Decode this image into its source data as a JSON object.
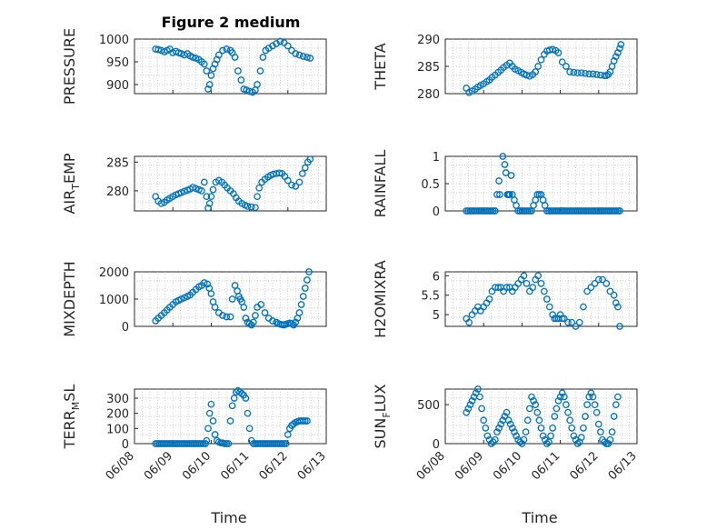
{
  "figure": {
    "title": "Figure 2 medium",
    "marker_color": "#0072bd",
    "xlabel": "Time",
    "xtick_labels": [
      "06/08",
      "06/09",
      "06/10",
      "06/11",
      "06/12",
      "06/13"
    ]
  },
  "chart_data": [
    {
      "type": "scatter",
      "ylabel": "PRESSURE",
      "ylim": [
        880,
        1000
      ],
      "yticks": [
        900,
        950,
        1000
      ],
      "grid": true,
      "x": [
        0.55,
        0.62,
        0.7,
        0.78,
        0.85,
        0.92,
        1.0,
        1.08,
        1.15,
        1.22,
        1.3,
        1.38,
        1.45,
        1.52,
        1.6,
        1.68,
        1.75,
        1.82,
        1.88,
        1.92,
        1.96,
        2.0,
        2.05,
        2.1,
        2.15,
        2.2,
        2.3,
        2.4,
        2.5,
        2.55,
        2.62,
        2.7,
        2.78,
        2.85,
        2.92,
        3.0,
        3.08,
        3.15,
        3.2,
        3.28,
        3.35,
        3.42,
        3.5,
        3.6,
        3.7,
        3.8,
        3.9,
        4.0,
        4.1,
        4.2,
        4.3,
        4.4,
        4.5,
        4.58
      ],
      "y": [
        978,
        977,
        975,
        972,
        975,
        978,
        970,
        973,
        970,
        968,
        965,
        968,
        963,
        960,
        958,
        955,
        950,
        945,
        930,
        890,
        900,
        920,
        935,
        945,
        955,
        965,
        975,
        978,
        975,
        970,
        960,
        930,
        910,
        890,
        888,
        885,
        883,
        888,
        900,
        930,
        960,
        975,
        980,
        985,
        990,
        995,
        992,
        985,
        975,
        968,
        965,
        962,
        960,
        958
      ]
    },
    {
      "type": "scatter",
      "ylabel": "THETA",
      "ylim": [
        280,
        290
      ],
      "yticks": [
        280,
        285,
        290
      ],
      "grid": true,
      "x": [
        0.55,
        0.62,
        0.7,
        0.78,
        0.85,
        0.92,
        1.0,
        1.08,
        1.15,
        1.22,
        1.3,
        1.38,
        1.45,
        1.52,
        1.6,
        1.68,
        1.75,
        1.82,
        1.9,
        1.98,
        2.05,
        2.12,
        2.2,
        2.28,
        2.35,
        2.42,
        2.5,
        2.58,
        2.65,
        2.72,
        2.8,
        2.88,
        2.95,
        3.05,
        3.15,
        3.25,
        3.35,
        3.45,
        3.55,
        3.65,
        3.75,
        3.85,
        3.95,
        4.05,
        4.15,
        4.2,
        4.25,
        4.3,
        4.35,
        4.4,
        4.45,
        4.5,
        4.55,
        4.58
      ],
      "y": [
        281,
        280.2,
        280.5,
        280.8,
        281.2,
        281.5,
        281.8,
        282.2,
        282.5,
        283,
        283.4,
        283.9,
        284.3,
        284.8,
        285.2,
        285.6,
        285,
        284.5,
        284.2,
        283.9,
        283.6,
        283.4,
        283.2,
        283.5,
        284,
        285,
        286.2,
        287.2,
        287.8,
        288,
        288.1,
        287.9,
        287.5,
        285.8,
        285,
        284,
        283.9,
        283.8,
        283.8,
        283.7,
        283.6,
        283.6,
        283.5,
        283.4,
        283.3,
        283.3,
        283.5,
        284,
        285,
        286,
        286.8,
        287.5,
        288.3,
        289
      ]
    },
    {
      "type": "scatter",
      "ylabel": "AIR",
      "ylabel_sub": "T",
      "ylabel_suffix": "EMP",
      "ylim": [
        276.5,
        286
      ],
      "yticks": [
        280,
        285
      ],
      "grid": true,
      "x": [
        0.55,
        0.62,
        0.7,
        0.78,
        0.85,
        0.92,
        1.0,
        1.08,
        1.15,
        1.22,
        1.3,
        1.38,
        1.45,
        1.52,
        1.6,
        1.68,
        1.75,
        1.82,
        1.88,
        1.92,
        1.96,
        2.0,
        2.05,
        2.12,
        2.2,
        2.28,
        2.35,
        2.42,
        2.5,
        2.58,
        2.65,
        2.72,
        2.8,
        2.88,
        2.95,
        3.05,
        3.15,
        3.2,
        3.25,
        3.32,
        3.4,
        3.48,
        3.55,
        3.62,
        3.7,
        3.78,
        3.85,
        3.92,
        4.0,
        4.1,
        4.2,
        4.3,
        4.38,
        4.45,
        4.52,
        4.58
      ],
      "y": [
        279,
        278.2,
        277.8,
        278,
        278.4,
        278.7,
        279,
        279.3,
        279.5,
        279.7,
        279.9,
        280.1,
        280.3,
        280.6,
        280.4,
        280.2,
        280,
        281.5,
        279,
        277,
        277.8,
        279,
        280.2,
        281.5,
        281.8,
        281.5,
        281,
        280.5,
        280,
        279.5,
        278.8,
        278.2,
        277.8,
        277.5,
        277.3,
        277.2,
        277.1,
        279,
        280.5,
        281.5,
        282,
        282.4,
        282.7,
        282.9,
        283,
        283.1,
        283,
        282.5,
        281.8,
        281,
        280.8,
        281.5,
        283,
        284,
        285,
        285.5
      ]
    },
    {
      "type": "scatter",
      "ylabel": "RAINFALL",
      "ylim": [
        0,
        1
      ],
      "yticks": [
        0,
        0.5,
        1
      ],
      "grid": true,
      "x": [
        0.55,
        0.6,
        0.65,
        0.7,
        0.75,
        0.8,
        0.85,
        0.9,
        0.95,
        1.0,
        1.05,
        1.1,
        1.15,
        1.2,
        1.25,
        1.3,
        1.35,
        1.4,
        1.42,
        1.5,
        1.55,
        1.58,
        1.62,
        1.65,
        1.68,
        1.72,
        1.75,
        1.8,
        1.85,
        1.9,
        1.95,
        2.0,
        2.05,
        2.1,
        2.15,
        2.2,
        2.25,
        2.3,
        2.35,
        2.4,
        2.45,
        2.5,
        2.55,
        2.6,
        2.65,
        2.7,
        2.75,
        2.8,
        2.85,
        2.9,
        2.95,
        3.0,
        3.05,
        3.1,
        3.15,
        3.2,
        3.25,
        3.3,
        3.35,
        3.4,
        3.45,
        3.5,
        3.55,
        3.6,
        3.65,
        3.7,
        3.75,
        3.8,
        3.85,
        3.9,
        3.95,
        4.0,
        4.05,
        4.1,
        4.15,
        4.2,
        4.25,
        4.3,
        4.35,
        4.4,
        4.45,
        4.5,
        4.55
      ],
      "y": [
        0,
        0,
        0,
        0,
        0,
        0,
        0,
        0,
        0,
        0,
        0,
        0,
        0,
        0,
        0,
        0,
        0.3,
        0.55,
        0.3,
        1.0,
        0.85,
        0.7,
        0.3,
        0.3,
        0.3,
        0.65,
        0.3,
        0.2,
        0.1,
        0,
        0,
        0,
        0,
        0,
        0,
        0,
        0,
        0.1,
        0.2,
        0.3,
        0.3,
        0.3,
        0.2,
        0.1,
        0,
        0,
        0,
        0,
        0,
        0,
        0,
        0,
        0,
        0,
        0,
        0,
        0,
        0,
        0,
        0,
        0,
        0,
        0,
        0,
        0,
        0,
        0,
        0,
        0,
        0,
        0,
        0,
        0,
        0,
        0,
        0,
        0,
        0,
        0,
        0,
        0,
        0,
        0
      ]
    },
    {
      "type": "scatter",
      "ylabel": "MIXDEPTH",
      "ylim": [
        0,
        2000
      ],
      "yticks": [
        0,
        1000,
        2000
      ],
      "grid": true,
      "x": [
        0.55,
        0.62,
        0.7,
        0.78,
        0.85,
        0.92,
        1.0,
        1.08,
        1.15,
        1.22,
        1.3,
        1.38,
        1.45,
        1.52,
        1.6,
        1.68,
        1.75,
        1.82,
        1.9,
        1.95,
        2.0,
        2.05,
        2.1,
        2.2,
        2.3,
        2.4,
        2.5,
        2.55,
        2.62,
        2.68,
        2.72,
        2.76,
        2.8,
        2.85,
        2.9,
        2.95,
        3.0,
        3.05,
        3.1,
        3.15,
        3.2,
        3.3,
        3.4,
        3.5,
        3.6,
        3.7,
        3.75,
        3.8,
        3.85,
        3.9,
        3.95,
        4.0,
        4.05,
        4.1,
        4.15,
        4.2,
        4.25,
        4.3,
        4.35,
        4.4,
        4.45,
        4.5,
        4.55
      ],
      "y": [
        200,
        300,
        400,
        500,
        600,
        700,
        800,
        900,
        950,
        1000,
        1050,
        1100,
        1150,
        1250,
        1350,
        1450,
        1500,
        1600,
        1550,
        1400,
        1200,
        900,
        700,
        500,
        400,
        350,
        350,
        1000,
        1500,
        1300,
        1100,
        1000,
        900,
        700,
        300,
        150,
        100,
        50,
        150,
        400,
        700,
        800,
        500,
        300,
        200,
        150,
        100,
        80,
        60,
        50,
        80,
        100,
        120,
        100,
        50,
        150,
        300,
        500,
        800,
        1100,
        1400,
        1700,
        2000
      ]
    },
    {
      "type": "scatter",
      "ylabel": "H2OMIXRA",
      "ylim": [
        4.7,
        6.1
      ],
      "yticks": [
        5,
        5.5,
        6
      ],
      "grid": true,
      "x": [
        0.55,
        0.62,
        0.7,
        0.78,
        0.85,
        0.92,
        1.0,
        1.08,
        1.15,
        1.22,
        1.3,
        1.38,
        1.45,
        1.52,
        1.6,
        1.68,
        1.75,
        1.82,
        1.9,
        1.98,
        2.05,
        2.12,
        2.2,
        2.28,
        2.35,
        2.42,
        2.5,
        2.58,
        2.65,
        2.72,
        2.8,
        2.85,
        2.9,
        2.95,
        3.0,
        3.05,
        3.1,
        3.2,
        3.3,
        3.4,
        3.5,
        3.6,
        3.7,
        3.8,
        3.9,
        4.0,
        4.1,
        4.2,
        4.3,
        4.4,
        4.45,
        4.5,
        4.55
      ],
      "y": [
        4.9,
        4.8,
        5.0,
        5.1,
        5.2,
        5.1,
        5.2,
        5.3,
        5.4,
        5.6,
        5.7,
        5.7,
        5.7,
        5.6,
        5.7,
        5.7,
        5.6,
        5.7,
        5.8,
        5.9,
        6.0,
        5.8,
        5.6,
        5.7,
        5.9,
        6.0,
        5.8,
        5.6,
        5.4,
        5.2,
        5.0,
        4.9,
        4.9,
        4.9,
        5.0,
        4.9,
        4.9,
        4.8,
        4.8,
        4.7,
        4.8,
        5.2,
        5.6,
        5.7,
        5.8,
        5.9,
        5.9,
        5.8,
        5.6,
        5.5,
        5.3,
        5.2,
        4.7
      ]
    },
    {
      "type": "scatter",
      "ylabel": "TERR",
      "ylabel_sub": "M",
      "ylabel_suffix": "SL",
      "ylim": [
        0,
        360
      ],
      "yticks": [
        0,
        100,
        200,
        300
      ],
      "grid": true,
      "x": [
        0.55,
        0.6,
        0.65,
        0.7,
        0.75,
        0.8,
        0.85,
        0.9,
        0.95,
        1.0,
        1.05,
        1.1,
        1.15,
        1.2,
        1.25,
        1.3,
        1.35,
        1.4,
        1.45,
        1.5,
        1.55,
        1.6,
        1.65,
        1.7,
        1.75,
        1.8,
        1.85,
        1.88,
        1.92,
        1.96,
        2.0,
        2.05,
        2.1,
        2.15,
        2.2,
        2.25,
        2.3,
        2.35,
        2.4,
        2.45,
        2.5,
        2.55,
        2.6,
        2.65,
        2.7,
        2.75,
        2.8,
        2.85,
        2.9,
        2.95,
        3.0,
        3.05,
        3.1,
        3.15,
        3.2,
        3.25,
        3.3,
        3.35,
        3.4,
        3.45,
        3.5,
        3.55,
        3.6,
        3.65,
        3.7,
        3.75,
        3.8,
        3.85,
        3.9,
        3.95,
        4.0,
        4.05,
        4.1,
        4.15,
        4.2,
        4.25,
        4.3,
        4.35,
        4.4,
        4.45,
        4.5
      ],
      "y": [
        0,
        0,
        0,
        0,
        0,
        0,
        0,
        0,
        0,
        0,
        0,
        0,
        0,
        0,
        0,
        0,
        0,
        0,
        0,
        0,
        0,
        0,
        0,
        0,
        0,
        0,
        0,
        20,
        100,
        200,
        260,
        150,
        60,
        20,
        10,
        5,
        5,
        0,
        0,
        0,
        150,
        250,
        300,
        340,
        350,
        340,
        330,
        320,
        300,
        200,
        100,
        20,
        0,
        0,
        0,
        0,
        0,
        0,
        0,
        0,
        0,
        0,
        0,
        0,
        0,
        0,
        0,
        0,
        0,
        0,
        60,
        100,
        120,
        130,
        140,
        145,
        150,
        150,
        150,
        150,
        150
      ]
    },
    {
      "type": "scatter",
      "ylabel": "SUN",
      "ylabel_sub": "F",
      "ylabel_suffix": "LUX",
      "ylim": [
        0,
        700
      ],
      "yticks": [
        0,
        500
      ],
      "grid": true,
      "x": [
        0.55,
        0.6,
        0.65,
        0.7,
        0.75,
        0.8,
        0.85,
        0.9,
        0.95,
        1.0,
        1.05,
        1.1,
        1.15,
        1.2,
        1.25,
        1.3,
        1.35,
        1.4,
        1.45,
        1.5,
        1.55,
        1.6,
        1.65,
        1.7,
        1.75,
        1.8,
        1.85,
        1.9,
        1.95,
        2.0,
        2.05,
        2.1,
        2.15,
        2.2,
        2.25,
        2.3,
        2.35,
        2.4,
        2.45,
        2.5,
        2.55,
        2.6,
        2.65,
        2.7,
        2.75,
        2.8,
        2.85,
        2.9,
        2.95,
        3.0,
        3.05,
        3.1,
        3.15,
        3.2,
        3.25,
        3.3,
        3.35,
        3.4,
        3.45,
        3.5,
        3.55,
        3.6,
        3.65,
        3.7,
        3.75,
        3.8,
        3.85,
        3.9,
        3.95,
        4.0,
        4.05,
        4.1,
        4.15,
        4.2,
        4.25,
        4.3,
        4.35,
        4.4,
        4.45,
        4.5
      ],
      "y": [
        400,
        450,
        500,
        550,
        600,
        650,
        700,
        600,
        450,
        300,
        200,
        100,
        50,
        0,
        20,
        50,
        150,
        200,
        250,
        300,
        350,
        400,
        300,
        250,
        200,
        150,
        100,
        50,
        20,
        0,
        50,
        150,
        300,
        450,
        600,
        550,
        500,
        400,
        300,
        200,
        100,
        50,
        0,
        20,
        100,
        200,
        350,
        450,
        550,
        600,
        650,
        600,
        500,
        400,
        300,
        200,
        100,
        50,
        0,
        20,
        80,
        200,
        350,
        500,
        600,
        650,
        600,
        500,
        400,
        250,
        150,
        50,
        20,
        0,
        0,
        50,
        150,
        350,
        500,
        600
      ]
    }
  ]
}
